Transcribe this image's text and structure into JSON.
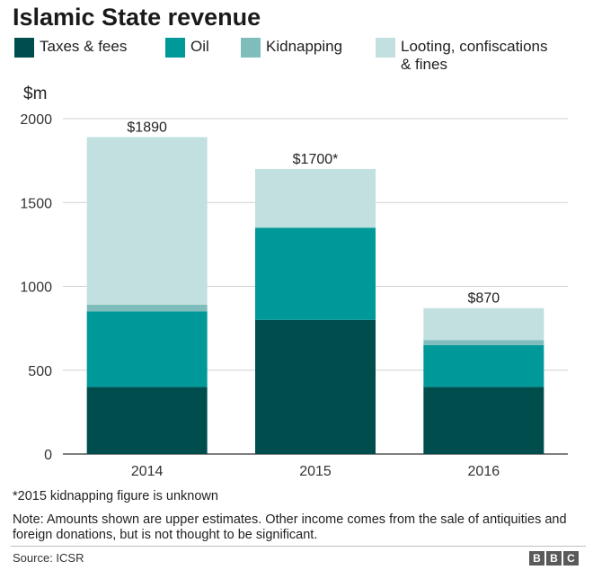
{
  "title": "Islamic State revenue",
  "colors": {
    "taxes": "#004d4d",
    "oil": "#009999",
    "kidnapping": "#7fbdbd",
    "looting": "#c2e0e0",
    "grid": "#d0d0d0",
    "axis": "#555555"
  },
  "chart_data": {
    "type": "bar",
    "stacked": true,
    "categories": [
      "2014",
      "2015",
      "2016"
    ],
    "series": [
      {
        "name": "Taxes & fees",
        "values": [
          400,
          800,
          400
        ]
      },
      {
        "name": "Oil",
        "values": [
          450,
          550,
          250
        ]
      },
      {
        "name": "Kidnapping",
        "values": [
          40,
          0,
          30
        ]
      },
      {
        "name": "Looting, confiscations & fines",
        "values": [
          1000,
          350,
          190
        ]
      }
    ],
    "totals_labels": [
      "$1890",
      "$1700*",
      "$870"
    ],
    "ylabel": "$m",
    "ylim": [
      0,
      2000
    ],
    "yticks": [
      0,
      500,
      1000,
      1500,
      2000
    ],
    "grid": true,
    "legend_placement": "top"
  },
  "legend": {
    "label1": "Taxes & fees",
    "label2": "Oil",
    "label3": "Kidnapping",
    "label4a": "Looting, confiscations",
    "label4b": "& fines"
  },
  "footnote": "*2015 kidnapping figure is unknown",
  "note": "Note: Amounts shown are upper estimates. Other income comes from the sale of antiquities and foreign donations, but is not thought to be significant.",
  "source": "Source: ICSR",
  "brand": [
    "B",
    "B",
    "C"
  ]
}
